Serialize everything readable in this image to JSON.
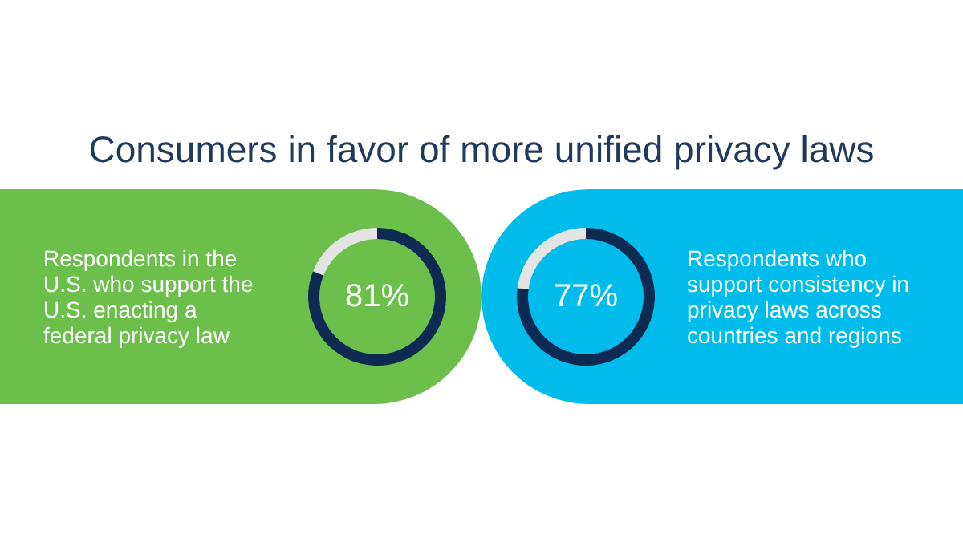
{
  "chart_data": [
    {
      "type": "donut",
      "title": "Consumers in favor of more unified privacy laws",
      "categories": [
        null,
        null
      ],
      "values": [
        81,
        19
      ],
      "colors": [
        "#0d2a52",
        "#e4e4e4"
      ],
      "value_labels": [
        "81%",
        null
      ],
      "annotations": [
        "Respondents in the U.S. who support the U.S. enacting a federal privacy law"
      ]
    },
    {
      "type": "donut",
      "categories": [
        null,
        null
      ],
      "values": [
        77,
        23
      ],
      "colors": [
        "#0d2a52",
        "#e4e4e4"
      ],
      "value_labels": [
        "77%",
        null
      ],
      "annotations": [
        "Respondents who support consistency in privacy laws across countries and regions"
      ]
    }
  ]
}
